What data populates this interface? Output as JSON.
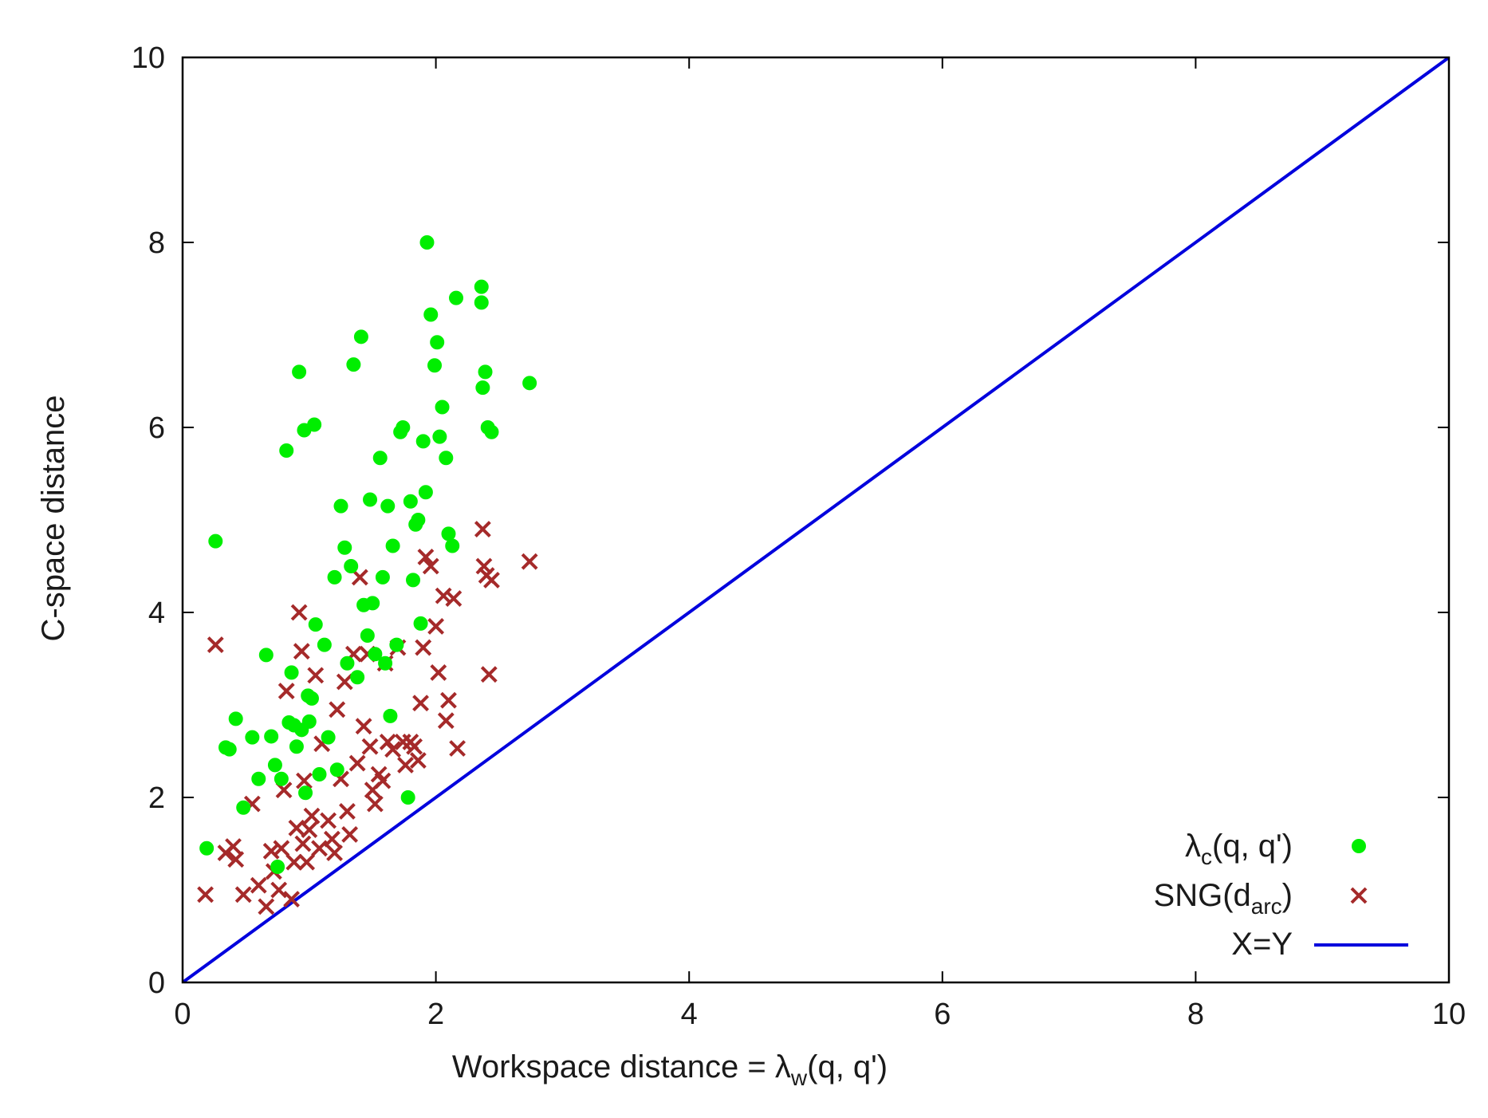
{
  "chart_data": {
    "type": "scatter",
    "xlabel_prefix": "Workspace distance = λ",
    "xlabel_sub": "w",
    "xlabel_suffix": "(q, q')",
    "ylabel": "C-space distance",
    "xlim": [
      0,
      10
    ],
    "ylim": [
      0,
      10
    ],
    "x_ticks": [
      "0",
      "2",
      "4",
      "6",
      "8",
      "10"
    ],
    "y_ticks": [
      "0",
      "2",
      "4",
      "6",
      "8",
      "10"
    ],
    "grid": false,
    "legend_position": "bottom-right",
    "series": [
      {
        "name_main": "λ",
        "name_sub": "c",
        "name_suffix": "(q, q')",
        "marker": "filled-circle",
        "color": "#00ee00",
        "points": [
          [
            0.19,
            1.45
          ],
          [
            0.26,
            4.77
          ],
          [
            0.34,
            2.54
          ],
          [
            0.37,
            2.52
          ],
          [
            0.42,
            2.85
          ],
          [
            0.48,
            1.89
          ],
          [
            0.55,
            2.65
          ],
          [
            0.6,
            2.2
          ],
          [
            0.66,
            3.54
          ],
          [
            0.7,
            2.66
          ],
          [
            0.73,
            2.35
          ],
          [
            0.75,
            1.25
          ],
          [
            0.78,
            2.2
          ],
          [
            0.82,
            5.75
          ],
          [
            0.84,
            2.81
          ],
          [
            0.86,
            3.35
          ],
          [
            0.88,
            2.78
          ],
          [
            0.9,
            2.55
          ],
          [
            0.92,
            6.6
          ],
          [
            0.94,
            2.73
          ],
          [
            0.96,
            5.97
          ],
          [
            0.97,
            2.05
          ],
          [
            0.99,
            3.1
          ],
          [
            1.0,
            2.82
          ],
          [
            1.02,
            3.07
          ],
          [
            1.04,
            6.03
          ],
          [
            1.05,
            3.87
          ],
          [
            1.08,
            2.25
          ],
          [
            1.12,
            3.65
          ],
          [
            1.15,
            2.65
          ],
          [
            1.2,
            4.38
          ],
          [
            1.22,
            2.3
          ],
          [
            1.25,
            5.15
          ],
          [
            1.28,
            4.7
          ],
          [
            1.3,
            3.45
          ],
          [
            1.33,
            4.5
          ],
          [
            1.35,
            6.68
          ],
          [
            1.38,
            3.3
          ],
          [
            1.41,
            6.98
          ],
          [
            1.43,
            4.08
          ],
          [
            1.46,
            3.75
          ],
          [
            1.48,
            5.22
          ],
          [
            1.5,
            4.1
          ],
          [
            1.52,
            3.55
          ],
          [
            1.56,
            5.67
          ],
          [
            1.58,
            4.38
          ],
          [
            1.6,
            3.45
          ],
          [
            1.62,
            5.15
          ],
          [
            1.64,
            2.88
          ],
          [
            1.66,
            4.72
          ],
          [
            1.69,
            3.65
          ],
          [
            1.72,
            5.95
          ],
          [
            1.74,
            6.0
          ],
          [
            1.78,
            2.0
          ],
          [
            1.8,
            5.2
          ],
          [
            1.82,
            4.35
          ],
          [
            1.84,
            4.95
          ],
          [
            1.86,
            5.0
          ],
          [
            1.88,
            3.88
          ],
          [
            1.9,
            5.85
          ],
          [
            1.92,
            5.3
          ],
          [
            1.93,
            8.0
          ],
          [
            1.96,
            7.22
          ],
          [
            1.99,
            6.67
          ],
          [
            2.01,
            6.92
          ],
          [
            2.03,
            5.9
          ],
          [
            2.05,
            6.22
          ],
          [
            2.08,
            5.67
          ],
          [
            2.1,
            4.85
          ],
          [
            2.13,
            4.72
          ],
          [
            2.16,
            7.4
          ],
          [
            2.36,
            7.52
          ],
          [
            2.36,
            7.35
          ],
          [
            2.37,
            6.43
          ],
          [
            2.39,
            6.6
          ],
          [
            2.41,
            6.0
          ],
          [
            2.44,
            5.95
          ],
          [
            2.74,
            6.48
          ]
        ]
      },
      {
        "name_main": "SNG(d",
        "name_sub": "arc",
        "name_suffix": ")",
        "marker": "cross",
        "color": "#a52a2a",
        "points": [
          [
            0.18,
            0.95
          ],
          [
            0.26,
            3.65
          ],
          [
            0.34,
            1.4
          ],
          [
            0.4,
            1.47
          ],
          [
            0.42,
            1.33
          ],
          [
            0.48,
            0.95
          ],
          [
            0.55,
            1.93
          ],
          [
            0.6,
            1.05
          ],
          [
            0.66,
            0.82
          ],
          [
            0.7,
            1.42
          ],
          [
            0.72,
            1.2
          ],
          [
            0.76,
            1.0
          ],
          [
            0.78,
            1.45
          ],
          [
            0.8,
            2.08
          ],
          [
            0.82,
            3.15
          ],
          [
            0.86,
            0.9
          ],
          [
            0.88,
            1.3
          ],
          [
            0.9,
            1.67
          ],
          [
            0.92,
            4.0
          ],
          [
            0.94,
            3.58
          ],
          [
            0.95,
            1.5
          ],
          [
            0.96,
            2.18
          ],
          [
            0.98,
            1.3
          ],
          [
            1.0,
            1.65
          ],
          [
            1.02,
            1.8
          ],
          [
            1.05,
            3.32
          ],
          [
            1.08,
            1.45
          ],
          [
            1.1,
            2.58
          ],
          [
            1.15,
            1.75
          ],
          [
            1.18,
            1.55
          ],
          [
            1.2,
            1.4
          ],
          [
            1.22,
            2.95
          ],
          [
            1.25,
            2.2
          ],
          [
            1.28,
            3.25
          ],
          [
            1.3,
            1.85
          ],
          [
            1.32,
            1.6
          ],
          [
            1.35,
            3.55
          ],
          [
            1.38,
            2.37
          ],
          [
            1.4,
            4.38
          ],
          [
            1.43,
            2.77
          ],
          [
            1.46,
            3.55
          ],
          [
            1.48,
            2.55
          ],
          [
            1.5,
            2.08
          ],
          [
            1.52,
            1.93
          ],
          [
            1.55,
            2.25
          ],
          [
            1.58,
            2.18
          ],
          [
            1.6,
            3.45
          ],
          [
            1.62,
            2.6
          ],
          [
            1.66,
            2.52
          ],
          [
            1.7,
            3.62
          ],
          [
            1.74,
            2.6
          ],
          [
            1.76,
            2.35
          ],
          [
            1.8,
            2.6
          ],
          [
            1.83,
            2.55
          ],
          [
            1.86,
            2.4
          ],
          [
            1.88,
            3.02
          ],
          [
            1.9,
            3.62
          ],
          [
            1.92,
            4.6
          ],
          [
            1.96,
            4.5
          ],
          [
            2.0,
            3.85
          ],
          [
            2.02,
            3.35
          ],
          [
            2.06,
            4.18
          ],
          [
            2.08,
            2.83
          ],
          [
            2.1,
            3.05
          ],
          [
            2.14,
            4.15
          ],
          [
            2.17,
            2.53
          ],
          [
            2.37,
            4.9
          ],
          [
            2.38,
            4.5
          ],
          [
            2.4,
            4.4
          ],
          [
            2.42,
            3.33
          ],
          [
            2.44,
            4.35
          ],
          [
            2.74,
            4.55
          ]
        ]
      },
      {
        "name": "X=Y",
        "marker": "line",
        "color": "#0000dd",
        "x": [
          0,
          10
        ],
        "y": [
          0,
          10
        ]
      }
    ]
  }
}
